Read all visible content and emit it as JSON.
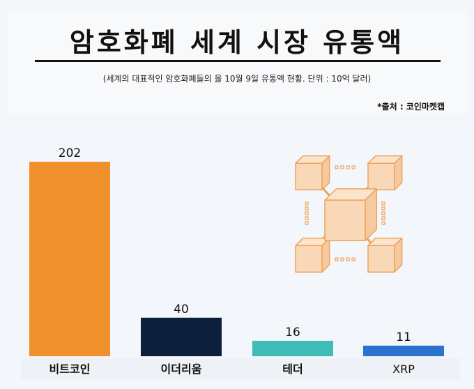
{
  "header": {
    "title": "암호화폐 세계 시장 유통액",
    "subtitle": "(세계의 대표적인 암호화폐들의  올 10월 9일 유통액 현황.  단위 :  10억 달러)",
    "source": "*출처 :  코인마켓캡"
  },
  "illustration": {
    "icon": "blockchain-network-icon",
    "color": "#f0a25a"
  },
  "chart_data": {
    "type": "bar",
    "title": "암호화폐 세계 시장 유통액",
    "categories": [
      "비트코인",
      "이더리움",
      "테더",
      "XRP"
    ],
    "values": [
      202,
      40,
      16,
      11
    ],
    "colors": [
      "#f0912d",
      "#0e1f3d",
      "#3dbdb5",
      "#2a74d0"
    ],
    "ylim": [
      0,
      202
    ],
    "grid": false,
    "legend": "none"
  }
}
